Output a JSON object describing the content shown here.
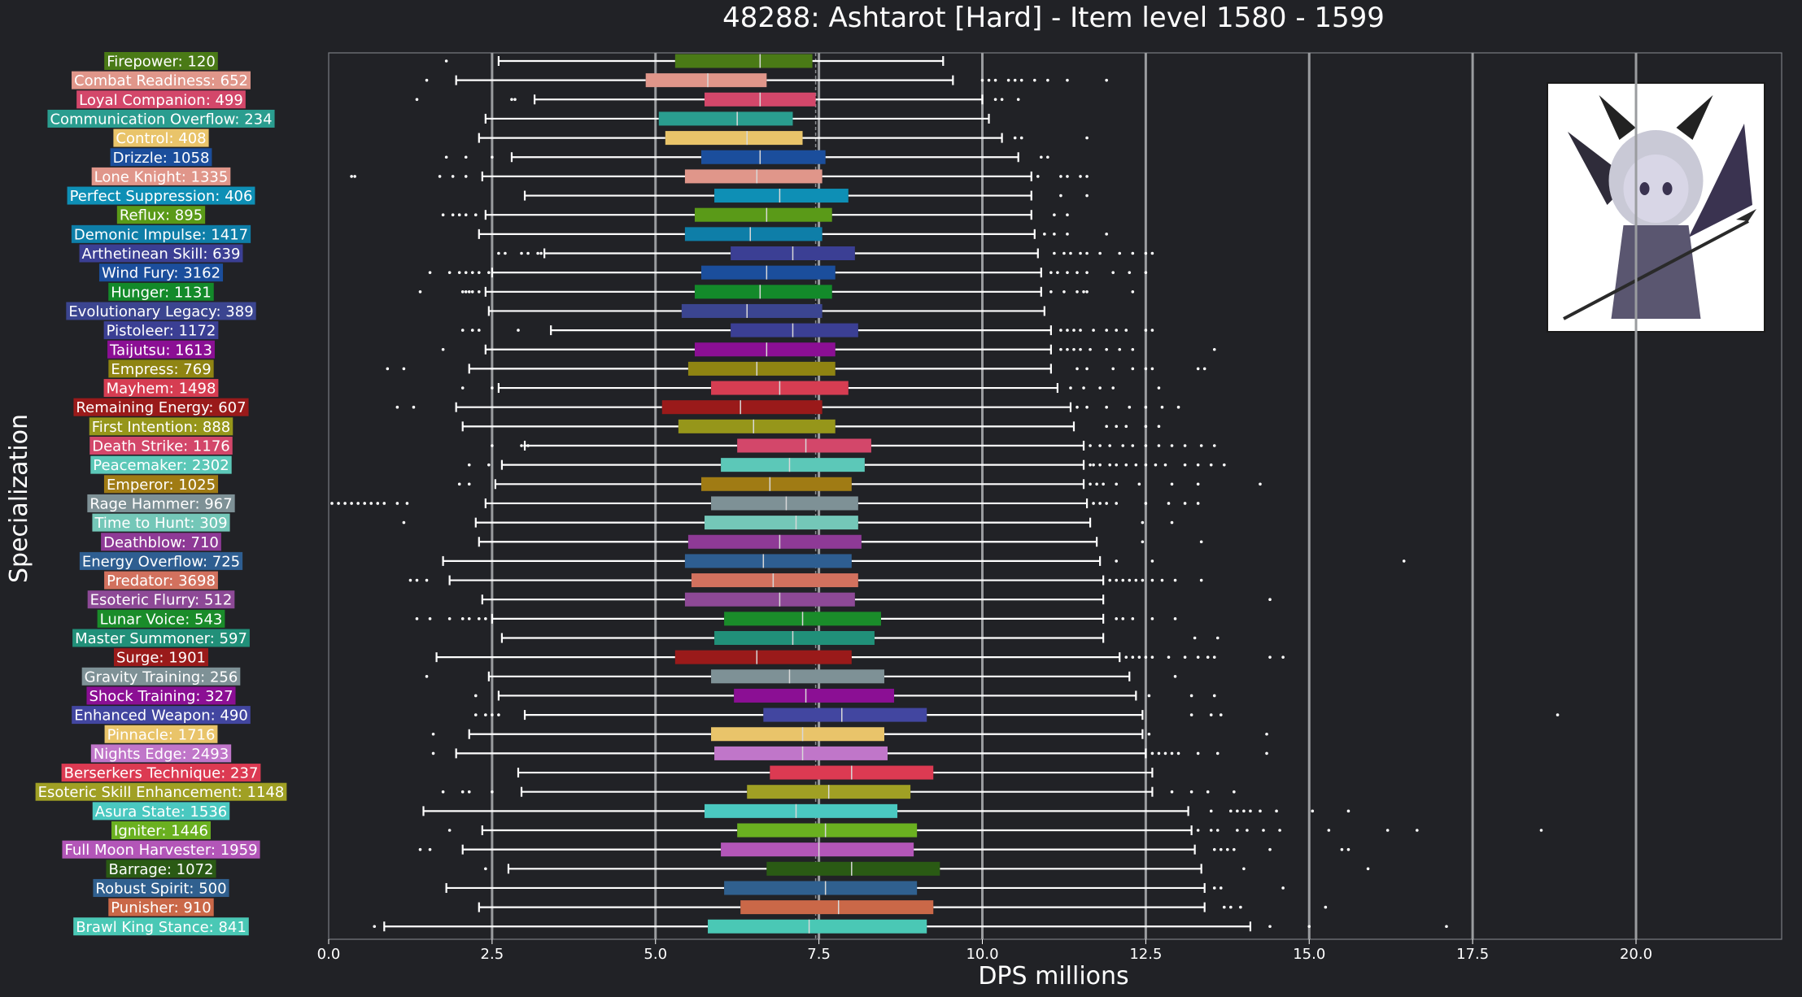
{
  "chart_data": {
    "type": "boxplot",
    "title": "48288: Ashtarot [Hard] - Item level 1580 - 1599",
    "xlabel": "DPS millions",
    "ylabel": "Specialization",
    "xlim": [
      0,
      22.5
    ],
    "xticks": [
      0.0,
      2.5,
      5.0,
      7.5,
      10.0,
      12.5,
      15.0,
      17.5,
      20.0
    ],
    "xtick_labels": [
      "0.0",
      "2.5",
      "5.0",
      "7.5",
      "10.0",
      "12.5",
      "15.0",
      "17.5",
      "20.0"
    ],
    "vertical_grid_lines": [
      2.5,
      5.0,
      7.5,
      10.0,
      12.5,
      15.0,
      17.5,
      20.0
    ],
    "overall_median_line": 7.45,
    "boss_portrait": "Ashtarot chibi portrait",
    "series": [
      {
        "label": "Firepower: 120",
        "color": "#4a7a16",
        "whislo": 2.6,
        "q1": 5.3,
        "med": 6.6,
        "q3": 7.4,
        "whishi": 9.4,
        "fliers": [
          1.8
        ]
      },
      {
        "label": "Combat Readiness: 652",
        "color": "#e0968a",
        "whislo": 1.95,
        "q1": 4.85,
        "med": 5.8,
        "q3": 6.7,
        "whishi": 9.55,
        "fliers": [
          1.5,
          10.0,
          10.1,
          10.2,
          10.4,
          10.5,
          10.6,
          10.8,
          11.0,
          11.3,
          11.9
        ]
      },
      {
        "label": "Loyal Companion: 499",
        "color": "#d3476a",
        "whislo": 3.15,
        "q1": 5.75,
        "med": 6.6,
        "q3": 7.45,
        "whishi": 10.0,
        "fliers": [
          1.35,
          2.8,
          2.85,
          10.2,
          10.3,
          10.55
        ]
      },
      {
        "label": "Communication Overflow: 234",
        "color": "#2a9d8f",
        "whislo": 2.4,
        "q1": 5.05,
        "med": 6.25,
        "q3": 7.1,
        "whishi": 10.1,
        "fliers": []
      },
      {
        "label": "Control: 408",
        "color": "#e9c46a",
        "whislo": 2.3,
        "q1": 5.15,
        "med": 6.4,
        "q3": 7.25,
        "whishi": 10.3,
        "fliers": [
          10.5,
          10.6,
          11.6
        ]
      },
      {
        "label": "Drizzle: 1058",
        "color": "#1b4e9c",
        "whislo": 2.8,
        "q1": 5.7,
        "med": 6.6,
        "q3": 7.6,
        "whishi": 10.55,
        "fliers": [
          1.8,
          2.1,
          2.5,
          10.9,
          11.0
        ]
      },
      {
        "label": "Lone Knight: 1335",
        "color": "#e0968a",
        "whislo": 2.35,
        "q1": 5.45,
        "med": 6.55,
        "q3": 7.55,
        "whishi": 10.75,
        "fliers": [
          0.35,
          0.4,
          1.7,
          1.9,
          2.1,
          10.85,
          11.2,
          11.3,
          11.5,
          11.6
        ]
      },
      {
        "label": "Perfect Suppression: 406",
        "color": "#0e8fb5",
        "whislo": 3.0,
        "q1": 5.9,
        "med": 6.9,
        "q3": 7.95,
        "whishi": 10.75,
        "fliers": [
          11.2,
          11.6
        ]
      },
      {
        "label": "Reflux: 895",
        "color": "#5a9a18",
        "whislo": 2.4,
        "q1": 5.6,
        "med": 6.7,
        "q3": 7.7,
        "whishi": 10.75,
        "fliers": [
          1.75,
          1.9,
          2.0,
          2.1,
          2.25,
          11.1,
          11.3
        ]
      },
      {
        "label": "Demonic Impulse: 1417",
        "color": "#0e7ea8",
        "whislo": 2.3,
        "q1": 5.45,
        "med": 6.45,
        "q3": 7.55,
        "whishi": 10.8,
        "fliers": [
          10.95,
          11.1,
          11.3,
          11.9
        ]
      },
      {
        "label": "Arthetinean Skill: 639",
        "color": "#3b3f94",
        "whislo": 3.3,
        "q1": 6.15,
        "med": 7.1,
        "q3": 8.05,
        "whishi": 10.85,
        "fliers": [
          2.6,
          2.7,
          2.95,
          3.05,
          3.2,
          3.25,
          11.1,
          11.25,
          11.35,
          11.5,
          11.6,
          11.8,
          12.1,
          12.3,
          12.5,
          12.6
        ]
      },
      {
        "label": "Wind Fury: 3162",
        "color": "#1b4e9c",
        "whislo": 2.5,
        "q1": 5.7,
        "med": 6.7,
        "q3": 7.75,
        "whishi": 10.9,
        "fliers": [
          1.55,
          1.85,
          2.0,
          2.1,
          2.2,
          2.3,
          2.45,
          11.05,
          11.15,
          11.3,
          11.45,
          11.6,
          12.0,
          12.25,
          12.5
        ]
      },
      {
        "label": "Hunger: 1131",
        "color": "#138a2a",
        "whislo": 2.4,
        "q1": 5.6,
        "med": 6.6,
        "q3": 7.7,
        "whishi": 10.9,
        "fliers": [
          1.4,
          2.05,
          2.1,
          2.15,
          2.2,
          2.3,
          11.05,
          11.25,
          11.45,
          11.55,
          11.6,
          12.3
        ]
      },
      {
        "label": "Evolutionary Legacy: 389",
        "color": "#3b4590",
        "whislo": 2.45,
        "q1": 5.4,
        "med": 6.4,
        "q3": 7.55,
        "whishi": 10.95,
        "fliers": []
      },
      {
        "label": "Pistoleer: 1172",
        "color": "#3b3f94",
        "whislo": 3.4,
        "q1": 6.15,
        "med": 7.1,
        "q3": 8.1,
        "whishi": 11.05,
        "fliers": [
          2.05,
          2.2,
          2.3,
          2.9,
          11.2,
          11.3,
          11.4,
          11.5,
          11.7,
          11.9,
          12.05,
          12.2,
          12.5,
          12.6
        ]
      },
      {
        "label": "Taijutsu: 1613",
        "color": "#8b0f94",
        "whislo": 2.4,
        "q1": 5.6,
        "med": 6.7,
        "q3": 7.75,
        "whishi": 11.05,
        "fliers": [
          1.75,
          11.2,
          11.3,
          11.4,
          11.5,
          11.65,
          11.9,
          12.1,
          12.3,
          13.55
        ]
      },
      {
        "label": "Empress: 769",
        "color": "#8f8412",
        "whislo": 2.15,
        "q1": 5.5,
        "med": 6.55,
        "q3": 7.75,
        "whishi": 11.05,
        "fliers": [
          0.9,
          1.15,
          11.45,
          11.6,
          12.0,
          12.3,
          12.5,
          12.6,
          13.3,
          13.4
        ]
      },
      {
        "label": "Mayhem: 1498",
        "color": "#d63d52",
        "whislo": 2.6,
        "q1": 5.85,
        "med": 6.9,
        "q3": 7.95,
        "whishi": 11.15,
        "fliers": [
          2.05,
          2.5,
          11.35,
          11.55,
          11.8,
          12.0,
          12.7
        ]
      },
      {
        "label": "Remaining Energy: 607",
        "color": "#9a1a1a",
        "whislo": 1.95,
        "q1": 5.1,
        "med": 6.3,
        "q3": 7.55,
        "whishi": 11.35,
        "fliers": [
          1.05,
          1.3,
          11.45,
          11.6,
          11.9,
          12.25,
          12.5,
          12.75,
          13.0
        ]
      },
      {
        "label": "First Intention: 888",
        "color": "#96961a",
        "whislo": 2.05,
        "q1": 5.35,
        "med": 6.5,
        "q3": 7.75,
        "whishi": 11.4,
        "fliers": [
          11.9,
          12.05,
          12.2,
          12.5,
          12.7
        ]
      },
      {
        "label": "Death Strike: 1176",
        "color": "#d3476a",
        "whislo": 3.0,
        "q1": 6.25,
        "med": 7.3,
        "q3": 8.3,
        "whishi": 11.55,
        "fliers": [
          2.95,
          3.0,
          3.05,
          2.5,
          11.65,
          11.8,
          11.95,
          12.15,
          12.3,
          12.5,
          12.7,
          12.9,
          13.1,
          13.35,
          13.55
        ]
      },
      {
        "label": "Peacemaker: 2302",
        "color": "#5cc8b8",
        "whislo": 2.65,
        "q1": 6.0,
        "med": 7.05,
        "q3": 8.2,
        "whishi": 11.55,
        "fliers": [
          2.15,
          2.45,
          11.65,
          11.7,
          11.8,
          11.95,
          12.05,
          12.2,
          12.35,
          12.5,
          12.65,
          12.8,
          13.1,
          13.3,
          13.5,
          13.7
        ]
      },
      {
        "label": "Emperor: 1025",
        "color": "#a07b14",
        "whislo": 2.55,
        "q1": 5.7,
        "med": 6.75,
        "q3": 8.0,
        "whishi": 11.55,
        "fliers": [
          2.0,
          2.15,
          11.65,
          11.75,
          11.85,
          12.05,
          12.4,
          12.9,
          13.3,
          14.25
        ]
      },
      {
        "label": "Rage Hammer: 967",
        "color": "#7e9196",
        "whislo": 2.4,
        "q1": 5.85,
        "med": 7.0,
        "q3": 8.1,
        "whishi": 11.6,
        "fliers": [
          0.05,
          0.15,
          0.25,
          0.35,
          0.45,
          0.55,
          0.65,
          0.75,
          0.85,
          1.05,
          1.2,
          11.7,
          11.8,
          11.9,
          12.05,
          12.5,
          12.85,
          13.1,
          13.3
        ]
      },
      {
        "label": "Time to Hunt: 309",
        "color": "#74c7b8",
        "whislo": 2.25,
        "q1": 5.75,
        "med": 7.15,
        "q3": 8.1,
        "whishi": 11.65,
        "fliers": [
          1.15,
          12.45,
          12.9
        ]
      },
      {
        "label": "Deathblow: 710",
        "color": "#8e3a96",
        "whislo": 2.3,
        "q1": 5.5,
        "med": 6.9,
        "q3": 8.15,
        "whishi": 11.75,
        "fliers": [
          12.45,
          13.35
        ]
      },
      {
        "label": "Energy Overflow: 725",
        "color": "#2e5e91",
        "whislo": 1.75,
        "q1": 5.45,
        "med": 6.65,
        "q3": 8.0,
        "whishi": 11.8,
        "fliers": [
          12.05,
          12.6,
          16.45
        ]
      },
      {
        "label": "Predator: 3698",
        "color": "#d2715e",
        "whislo": 1.85,
        "q1": 5.55,
        "med": 6.8,
        "q3": 8.1,
        "whishi": 11.85,
        "fliers": [
          1.25,
          1.35,
          1.5,
          11.95,
          12.05,
          12.15,
          12.25,
          12.35,
          12.45,
          12.6,
          12.75,
          12.95,
          13.35
        ]
      },
      {
        "label": "Esoteric Flurry: 512",
        "color": "#8d4996",
        "whislo": 2.35,
        "q1": 5.45,
        "med": 6.9,
        "q3": 8.05,
        "whishi": 11.85,
        "fliers": [
          14.4
        ]
      },
      {
        "label": "Lunar Voice: 543",
        "color": "#1a8c2a",
        "whislo": 2.5,
        "q1": 6.05,
        "med": 7.25,
        "q3": 8.45,
        "whishi": 11.85,
        "fliers": [
          1.35,
          1.55,
          1.85,
          2.05,
          2.15,
          2.3,
          2.4,
          12.05,
          12.15,
          12.3,
          12.6,
          12.95
        ]
      },
      {
        "label": "Master Summoner: 597",
        "color": "#219079",
        "whislo": 2.65,
        "q1": 5.9,
        "med": 7.1,
        "q3": 8.35,
        "whishi": 11.85,
        "fliers": [
          13.25,
          13.6
        ]
      },
      {
        "label": "Surge: 1901",
        "color": "#9a1a1a",
        "whislo": 1.65,
        "q1": 5.3,
        "med": 6.55,
        "q3": 8.0,
        "whishi": 12.1,
        "fliers": [
          12.2,
          12.3,
          12.4,
          12.5,
          12.6,
          12.85,
          13.1,
          13.3,
          13.45,
          13.55,
          14.4,
          14.6
        ]
      },
      {
        "label": "Gravity Training: 256",
        "color": "#7e9196",
        "whislo": 2.45,
        "q1": 5.85,
        "med": 7.05,
        "q3": 8.5,
        "whishi": 12.25,
        "fliers": [
          1.5,
          12.95
        ]
      },
      {
        "label": "Shock Training: 327",
        "color": "#8b0f94",
        "whislo": 2.6,
        "q1": 6.2,
        "med": 7.3,
        "q3": 8.65,
        "whishi": 12.35,
        "fliers": [
          2.25,
          12.55,
          13.2,
          13.55
        ]
      },
      {
        "label": "Enhanced Weapon: 490",
        "color": "#4246a0",
        "whislo": 3.0,
        "q1": 6.65,
        "med": 7.85,
        "q3": 9.15,
        "whishi": 12.45,
        "fliers": [
          2.25,
          2.4,
          2.5,
          2.6,
          13.2,
          13.5,
          13.65,
          18.8
        ]
      },
      {
        "label": "Pinnacle: 1716",
        "color": "#e9c46a",
        "whislo": 2.15,
        "q1": 5.85,
        "med": 7.25,
        "q3": 8.5,
        "whishi": 12.45,
        "fliers": [
          1.6,
          12.55,
          14.35
        ]
      },
      {
        "label": "Nights Edge: 2493",
        "color": "#c076c9",
        "whislo": 1.95,
        "q1": 5.9,
        "med": 7.25,
        "q3": 8.55,
        "whishi": 12.5,
        "fliers": [
          1.6,
          12.6,
          12.7,
          12.8,
          12.9,
          13.0,
          13.3,
          13.6,
          14.35
        ]
      },
      {
        "label": "Berserkers Technique: 237",
        "color": "#dc3a52",
        "whislo": 2.9,
        "q1": 6.75,
        "med": 8.0,
        "q3": 9.25,
        "whishi": 12.6,
        "fliers": []
      },
      {
        "label": "Esoteric Skill Enhancement: 1148",
        "color": "#a0a024",
        "whislo": 2.95,
        "q1": 6.4,
        "med": 7.65,
        "q3": 8.9,
        "whishi": 12.6,
        "fliers": [
          1.75,
          2.05,
          2.15,
          2.5,
          12.9,
          13.2,
          13.45,
          13.85
        ]
      },
      {
        "label": "Asura State: 1536",
        "color": "#4ac8c0",
        "whislo": 1.45,
        "q1": 5.75,
        "med": 7.15,
        "q3": 8.7,
        "whishi": 13.15,
        "fliers": [
          13.5,
          13.8,
          13.9,
          14.0,
          14.1,
          14.25,
          14.5,
          15.05,
          15.6
        ]
      },
      {
        "label": "Igniter: 1446",
        "color": "#6ab020",
        "whislo": 2.35,
        "q1": 6.25,
        "med": 7.6,
        "q3": 9.0,
        "whishi": 13.2,
        "fliers": [
          1.85,
          13.3,
          13.5,
          13.6,
          13.9,
          14.05,
          14.3,
          14.55,
          15.3,
          16.2,
          16.65,
          18.55
        ]
      },
      {
        "label": "Full Moon Harvester: 1959",
        "color": "#b356b8",
        "whislo": 2.05,
        "q1": 6.0,
        "med": 7.5,
        "q3": 8.95,
        "whishi": 13.25,
        "fliers": [
          1.4,
          1.55,
          13.55,
          13.65,
          13.75,
          13.85,
          14.4,
          15.5,
          15.6
        ]
      },
      {
        "label": "Barrage: 1072",
        "color": "#2a5a14",
        "whislo": 2.75,
        "q1": 6.7,
        "med": 8.0,
        "q3": 9.35,
        "whishi": 13.35,
        "fliers": [
          2.4,
          14.0,
          15.9
        ]
      },
      {
        "label": "Robust Spirit: 500",
        "color": "#30608f",
        "whislo": 1.8,
        "q1": 6.05,
        "med": 7.6,
        "q3": 9.0,
        "whishi": 13.4,
        "fliers": [
          13.55,
          13.65,
          14.6
        ]
      },
      {
        "label": "Punisher: 910",
        "color": "#ca6848",
        "whislo": 2.3,
        "q1": 6.3,
        "med": 7.8,
        "q3": 9.25,
        "whishi": 13.4,
        "fliers": [
          13.7,
          13.8,
          13.95,
          15.25
        ]
      },
      {
        "label": "Brawl King Stance: 841",
        "color": "#4ac8b5",
        "whislo": 0.85,
        "q1": 5.8,
        "med": 7.35,
        "q3": 9.15,
        "whishi": 14.1,
        "fliers": [
          0.7,
          14.4,
          15.0,
          17.1
        ]
      }
    ]
  }
}
